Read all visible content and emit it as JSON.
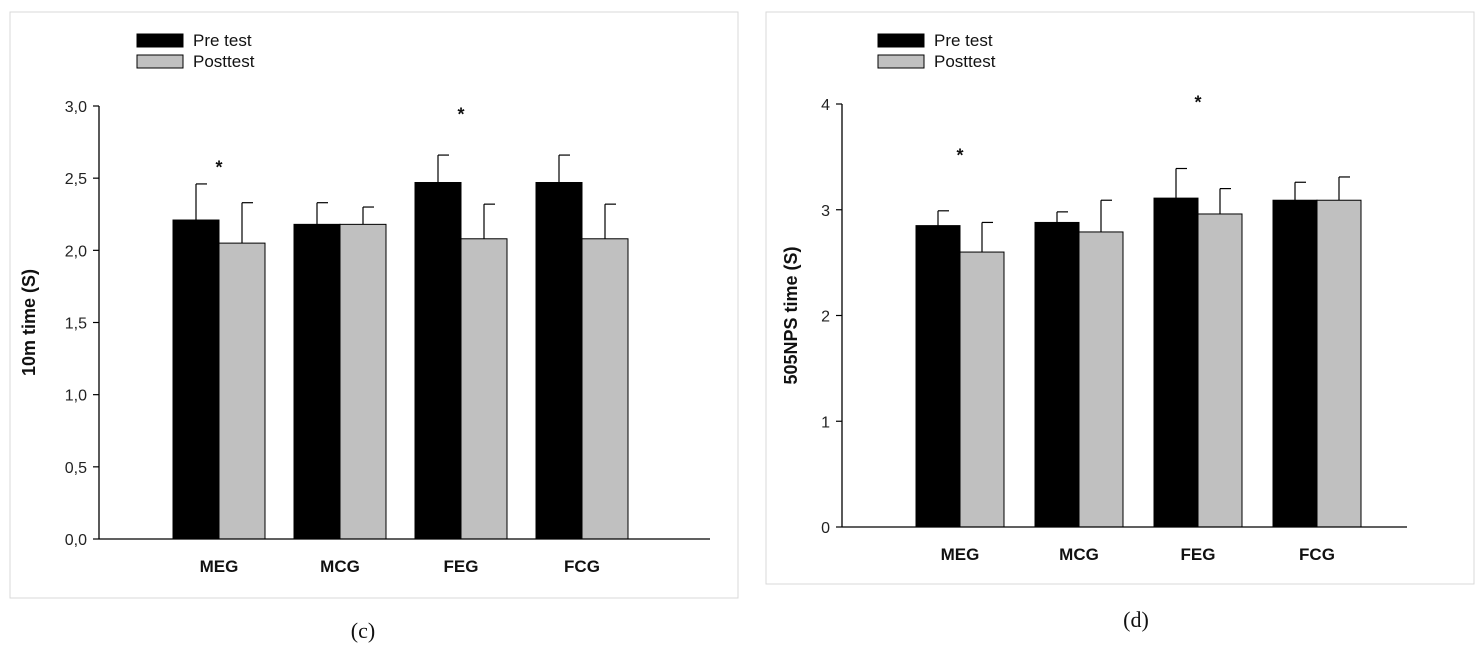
{
  "chart_data": [
    {
      "type": "bar",
      "panel": "(c)",
      "ylabel": "10m time (S)",
      "xlabel": "",
      "categories": [
        "MEG",
        "MCG",
        "FEG",
        "FCG"
      ],
      "ylim": [
        0,
        3.0
      ],
      "yticks": [
        "0,0",
        "0,5",
        "1,0",
        "1,5",
        "2,0",
        "2,5",
        "3,0"
      ],
      "ytick_values": [
        0,
        0.5,
        1.0,
        1.5,
        2.0,
        2.5,
        3.0
      ],
      "legend": [
        "Pre test",
        "Posttest"
      ],
      "legend_position": "top-left",
      "series": [
        {
          "name": "Pre test",
          "color": "#000000",
          "values": [
            2.21,
            2.18,
            2.47,
            2.47
          ],
          "errors": [
            0.25,
            0.15,
            0.19,
            0.19
          ]
        },
        {
          "name": "Posttest",
          "color": "#c0c0c0",
          "values": [
            2.05,
            2.18,
            2.08,
            2.08
          ],
          "errors": [
            0.28,
            0.12,
            0.24,
            0.24
          ]
        }
      ],
      "annotations": [
        {
          "text": "*",
          "category": "MEG",
          "y": 2.6
        },
        {
          "text": "*",
          "category": "FEG",
          "y": 2.97
        }
      ]
    },
    {
      "type": "bar",
      "panel": "(d)",
      "ylabel": "505NPS time (S)",
      "xlabel": "",
      "categories": [
        "MEG",
        "MCG",
        "FEG",
        "FCG"
      ],
      "ylim": [
        0,
        4
      ],
      "yticks": [
        "0",
        "1",
        "2",
        "3",
        "4"
      ],
      "ytick_values": [
        0,
        1,
        2,
        3,
        4
      ],
      "legend": [
        "Pre test",
        "Posttest"
      ],
      "legend_position": "top-left",
      "series": [
        {
          "name": "Pre test",
          "color": "#000000",
          "values": [
            2.85,
            2.88,
            3.11,
            3.09
          ],
          "errors": [
            0.14,
            0.1,
            0.28,
            0.17
          ]
        },
        {
          "name": "Posttest",
          "color": "#c0c0c0",
          "values": [
            2.6,
            2.79,
            2.96,
            3.09
          ],
          "errors": [
            0.28,
            0.3,
            0.24,
            0.22
          ]
        }
      ],
      "annotations": [
        {
          "text": "*",
          "category": "MEG",
          "y": 3.55
        },
        {
          "text": "*",
          "category": "FEG",
          "y": 4.05
        }
      ]
    }
  ]
}
